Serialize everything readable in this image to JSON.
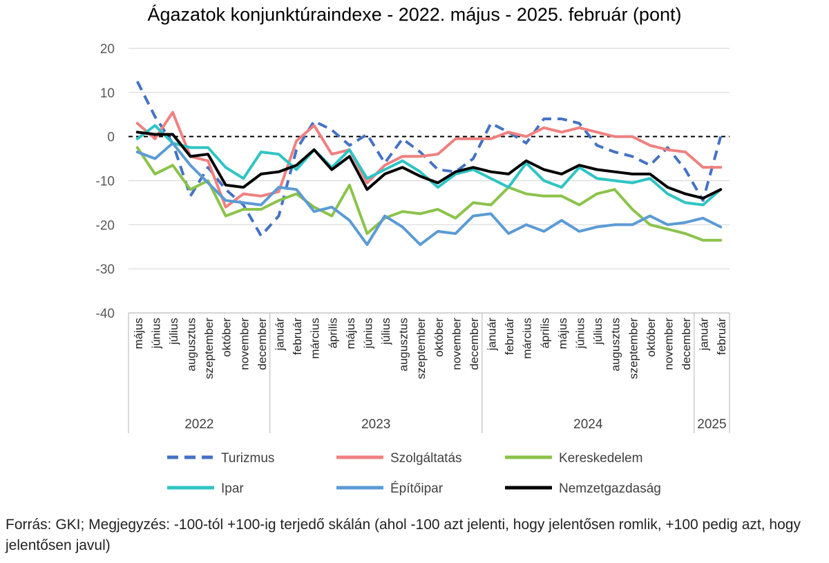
{
  "title": "Ágazatok konjunktúraindexe - 2022. május - 2025. február (pont)",
  "footnote": "Forrás: GKI; Megjegyzés: -100-tól +100-ig terjedő skálán (ahol -100 azt jelenti, hogy jelentősen romlik, +100 pedig azt, hogy jelentősen javul)",
  "chart_data": {
    "type": "line",
    "ylim": [
      -40,
      20
    ],
    "yticks": [
      20,
      10,
      0,
      -10,
      -20,
      -30,
      -40
    ],
    "reference_line": 0,
    "grid": true,
    "legend_position": "bottom",
    "categories": [
      "május",
      "június",
      "július",
      "augusztus",
      "szeptember",
      "október",
      "november",
      "december",
      "január",
      "február",
      "március",
      "április",
      "május",
      "június",
      "július",
      "augusztus",
      "szeptember",
      "október",
      "november",
      "december",
      "január",
      "február",
      "március",
      "április",
      "május",
      "június",
      "július",
      "augusztus",
      "szeptember",
      "október",
      "november",
      "december",
      "január",
      "február"
    ],
    "year_groups": [
      {
        "label": "2022",
        "count": 8
      },
      {
        "label": "2023",
        "count": 12
      },
      {
        "label": "2024",
        "count": 12
      },
      {
        "label": "2025",
        "count": 2
      }
    ],
    "series": [
      {
        "name": "Turizmus",
        "color": "#4472C4",
        "dash": true,
        "values": [
          12.5,
          4.5,
          -1.5,
          -13.5,
          -7,
          -12,
          -15.5,
          -22.5,
          -18,
          -3,
          3.5,
          1.5,
          -2,
          0.5,
          -6,
          -0.5,
          -3.5,
          -7.5,
          -8,
          -5,
          3,
          1,
          -1.5,
          4,
          4,
          3,
          -2,
          -3.5,
          -4.5,
          -6.5,
          -2.5,
          -7.5,
          -14.5,
          0
        ]
      },
      {
        "name": "Szolgáltatás",
        "color": "#F08080",
        "values": [
          3,
          -0.5,
          5.5,
          -4.5,
          -5.5,
          -16,
          -13,
          -13.5,
          -12.5,
          -1,
          2.5,
          -4,
          -3,
          -10.5,
          -6.5,
          -4.5,
          -4.5,
          -4,
          -0.5,
          -0.5,
          -0.5,
          1,
          0,
          2,
          1,
          2,
          1,
          0,
          0,
          -2,
          -3,
          -3.5,
          -7,
          -7
        ]
      },
      {
        "name": "Kereskedelem",
        "color": "#8BC34A",
        "values": [
          -2.5,
          -8.5,
          -6.5,
          -12,
          -10,
          -18,
          -16.5,
          -16.5,
          -14.5,
          -13,
          -16,
          -18,
          -11,
          -22,
          -18.5,
          -17,
          -17.5,
          -16.5,
          -18.5,
          -15,
          -15.5,
          -11.5,
          -13,
          -13.5,
          -13.5,
          -15.5,
          -13,
          -12,
          -16.5,
          -20,
          -21,
          -22,
          -23.5,
          -23.5
        ]
      },
      {
        "name": "Ipar",
        "color": "#2EC4C4",
        "values": [
          -0.5,
          2.5,
          -1.5,
          -2.5,
          -2.5,
          -7,
          -9.5,
          -3.5,
          -4,
          -7.5,
          -3,
          -7,
          -3,
          -9.5,
          -7.5,
          -5.5,
          -8,
          -11.5,
          -8.5,
          -7.5,
          -9.5,
          -11.5,
          -6,
          -10,
          -11.5,
          -7,
          -9.5,
          -10,
          -10.5,
          -9.5,
          -13,
          -15,
          -15.5,
          -12
        ]
      },
      {
        "name": "Építőipar",
        "color": "#5B9BD5",
        "values": [
          -3.5,
          -5,
          -1.5,
          -6.5,
          -10.5,
          -14.5,
          -15,
          -15.5,
          -11.5,
          -12,
          -17,
          -16,
          -19,
          -24.5,
          -18,
          -20.5,
          -24.5,
          -21.5,
          -22,
          -18,
          -17.5,
          -22,
          -20,
          -21.5,
          -19,
          -21.5,
          -20.5,
          -20,
          -20,
          -18,
          -20,
          -19.5,
          -18.5,
          -20.5
        ]
      },
      {
        "name": "Nemzetgazdaság",
        "color": "#000000",
        "values": [
          1,
          0.5,
          0.5,
          -4.5,
          -4,
          -11,
          -11.5,
          -8.5,
          -8,
          -6.5,
          -3,
          -7.5,
          -4.5,
          -12,
          -8.5,
          -7,
          -9,
          -10.5,
          -8,
          -7,
          -8,
          -8.5,
          -5.5,
          -7.5,
          -8.5,
          -6.5,
          -7.5,
          -8,
          -8.5,
          -8.5,
          -11.5,
          -13,
          -14,
          -12
        ]
      }
    ]
  }
}
